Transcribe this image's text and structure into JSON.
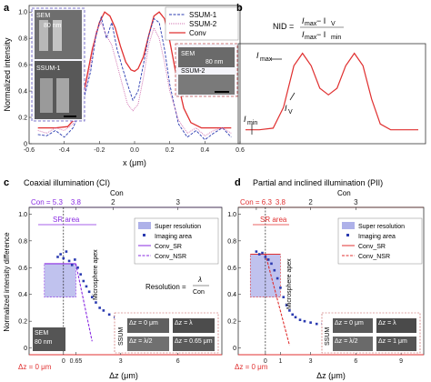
{
  "panel_labels": {
    "a": "a",
    "b": "b",
    "c": "c",
    "d": "d"
  },
  "panel_a": {
    "xlabel": "x (μm)",
    "ylabel": "Normalized intensity",
    "xticks": [
      "-0.6",
      "-0.4",
      "-0.2",
      "0.0",
      "0.2",
      "0.4",
      "0.6"
    ],
    "yticks": [
      "0",
      "0.2",
      "0.4",
      "0.6",
      "0.8",
      "1.0"
    ],
    "legend": [
      "SSUM-1",
      "SSUM-2",
      "Conv"
    ],
    "inset_labels": {
      "sem": "SEM",
      "sem_scale": "80 nm",
      "ssum1": "SSUM-1",
      "sem2": "SEM",
      "sem2_scale": "80 nm",
      "ssum2": "SSUM-2"
    }
  },
  "panel_b": {
    "formula_lhs": "NID =",
    "formula_num": "I",
    "formula_num_sub1": "max",
    "formula_num_mid": " − I",
    "formula_num_sub2": "V",
    "formula_den": "I",
    "formula_den_sub1": "max",
    "formula_den_mid": " − I",
    "formula_den_sub2": "min",
    "label_max": "I",
    "label_max_sub": "max",
    "label_min": "I",
    "label_min_sub": "min",
    "label_v": "I",
    "label_v_sub": "V"
  },
  "panel_c": {
    "title": "Coaxial illumination (CI)",
    "top_axis_label": "Con",
    "top_prefix": "Con = 5.3",
    "top_ticks": [
      "5.3",
      "3.8",
      "2",
      "3"
    ],
    "ylabel": "Normalized intensity difference",
    "xlabel": "Δz (μm)",
    "bottom_prefix": "Δz = 0 μm",
    "xticks": [
      "0",
      "0.65",
      "3",
      "6"
    ],
    "yticks": [
      "0",
      "0.2",
      "0.4",
      "0.6",
      "0.8",
      "1.0"
    ],
    "sr_area": "SR area",
    "legend": [
      "Super resolution",
      "Imaging area",
      "Conv_SR",
      "Conv_NSR"
    ],
    "resolution_label": "Resolution =",
    "resolution_num": "λ",
    "resolution_den": "Con",
    "apex_label": "Microsphere apex",
    "sem_label": "SEM",
    "sem_scale": "80 nm",
    "ssum_label": "SSUM",
    "strip_labels": [
      "Δz = 0 μm",
      "Δz = λ",
      "Δz = λ/2",
      "Δz = 0.65 μm"
    ]
  },
  "panel_d": {
    "title": "Partial and inclined illumination (PII)",
    "top_axis_label": "Con",
    "top_prefix": "Con = 6.3",
    "top_ticks": [
      "6.3",
      "3.8",
      "2",
      "3"
    ],
    "xlabel": "Δz (μm)",
    "bottom_prefix": "Δz = 0 μm",
    "xticks": [
      "0",
      "1",
      "3",
      "6",
      "9"
    ],
    "yticks": [
      "0",
      "0.2",
      "0.4",
      "0.6",
      "0.8",
      "1.0"
    ],
    "sr_area": "SR area",
    "legend": [
      "Super resolution",
      "Imaging area",
      "Conv_SR",
      "Conv_NSR"
    ],
    "apex_label": "Microsphere apex",
    "ssum_label": "SSUM",
    "strip_labels": [
      "Δz = 0 μm",
      "Δz = λ",
      "Δz = λ/2",
      "Δz = 1 μm"
    ]
  },
  "colors": {
    "blue": "#2a3ab0",
    "red": "#e03030",
    "purple": "#8a2be2",
    "pink": "#d070b0",
    "shade": "#8c90e0"
  },
  "chart_data": [
    {
      "type": "line",
      "panel": "a",
      "xlabel": "x (μm)",
      "ylabel": "Normalized intensity",
      "xlim": [
        -0.6,
        0.6
      ],
      "ylim": [
        0,
        1.05
      ],
      "series": [
        {
          "name": "Conv",
          "x": [
            -0.55,
            -0.45,
            -0.38,
            -0.32,
            -0.28,
            -0.24,
            -0.2,
            -0.17,
            -0.14,
            -0.11,
            -0.08,
            -0.05,
            -0.02,
            0.0,
            0.02,
            0.05,
            0.08,
            0.11,
            0.14,
            0.17,
            0.2,
            0.24,
            0.28,
            0.32,
            0.38,
            0.45,
            0.55
          ],
          "y": [
            0.12,
            0.12,
            0.13,
            0.22,
            0.45,
            0.72,
            0.92,
            1.0,
            0.97,
            0.88,
            0.74,
            0.62,
            0.56,
            0.55,
            0.57,
            0.66,
            0.82,
            0.97,
            1.0,
            0.95,
            0.78,
            0.5,
            0.27,
            0.16,
            0.12,
            0.12,
            0.12
          ]
        },
        {
          "name": "SSUM-1",
          "x": [
            -0.55,
            -0.5,
            -0.45,
            -0.4,
            -0.35,
            -0.3,
            -0.25,
            -0.22,
            -0.19,
            -0.16,
            -0.13,
            -0.1,
            -0.07,
            -0.04,
            -0.01,
            0.02,
            0.05,
            0.08,
            0.11,
            0.14,
            0.17,
            0.2,
            0.25,
            0.3,
            0.35,
            0.4,
            0.45,
            0.5,
            0.55
          ],
          "y": [
            0.07,
            0.06,
            0.1,
            0.05,
            0.12,
            0.28,
            0.55,
            0.82,
            0.96,
            0.8,
            0.92,
            0.72,
            0.58,
            0.45,
            0.33,
            0.4,
            0.6,
            0.82,
            0.95,
            0.92,
            0.72,
            0.45,
            0.15,
            0.05,
            0.1,
            0.03,
            0.08,
            0.12,
            0.05
          ]
        },
        {
          "name": "SSUM-2",
          "x": [
            -0.55,
            -0.5,
            -0.45,
            -0.4,
            -0.35,
            -0.3,
            -0.25,
            -0.22,
            -0.19,
            -0.16,
            -0.13,
            -0.1,
            -0.07,
            -0.04,
            -0.01,
            0.02,
            0.05,
            0.08,
            0.11,
            0.14,
            0.17,
            0.2,
            0.25,
            0.3,
            0.35,
            0.4,
            0.45,
            0.5,
            0.55
          ],
          "y": [
            0.1,
            0.08,
            0.12,
            0.1,
            0.15,
            0.3,
            0.6,
            0.85,
            0.92,
            0.82,
            0.75,
            0.6,
            0.45,
            0.3,
            0.25,
            0.3,
            0.5,
            0.75,
            0.88,
            0.8,
            0.62,
            0.4,
            0.18,
            0.08,
            0.12,
            0.06,
            0.1,
            0.12,
            0.08
          ]
        }
      ]
    },
    {
      "type": "line",
      "panel": "b",
      "series": [
        {
          "x": [
            0,
            0.08,
            0.16,
            0.22,
            0.28,
            0.33,
            0.38,
            0.43,
            0.48,
            0.53,
            0.58,
            0.63,
            0.68,
            0.73,
            0.78,
            0.84,
            0.92,
            1.0
          ],
          "y": [
            0.08,
            0.08,
            0.1,
            0.35,
            0.85,
            1.0,
            0.85,
            0.58,
            0.5,
            0.58,
            0.85,
            1.0,
            0.85,
            0.45,
            0.15,
            0.08,
            0.08,
            0.08
          ]
        }
      ]
    },
    {
      "type": "scatter",
      "panel": "c",
      "xlabel": "Δz (μm)",
      "ylabel": "Normalized intensity difference",
      "xlim": [
        -1.8,
        8.3
      ],
      "ylim": [
        -0.05,
        1.05
      ],
      "sr_region_x": [
        -1.0,
        0.65
      ],
      "sr_region_y": [
        0.38,
        0.63
      ],
      "series": [
        {
          "name": "Imaging area",
          "x": [
            -0.3,
            -0.15,
            0.0,
            0.15,
            0.3,
            0.45,
            0.6,
            0.75,
            0.9,
            1.05,
            1.2,
            1.35,
            1.5,
            1.7,
            1.9,
            2.1,
            2.4,
            2.7,
            3.0,
            3.3,
            3.6,
            3.9,
            4.2,
            4.5,
            4.8,
            5.1,
            5.4,
            5.7,
            6.0,
            6.3,
            6.6,
            6.9,
            7.2,
            7.5
          ],
          "y": [
            0.68,
            0.7,
            0.67,
            0.72,
            0.65,
            0.62,
            0.66,
            0.6,
            0.55,
            0.5,
            0.46,
            0.42,
            0.38,
            0.34,
            0.3,
            0.28,
            0.25,
            0.23,
            0.21,
            0.2,
            0.19,
            0.18,
            0.17,
            0.16,
            0.15,
            0.14,
            0.14,
            0.13,
            0.13,
            0.12,
            0.12,
            0.11,
            0.11,
            0.1
          ]
        },
        {
          "name": "Conv_SR",
          "x": [
            -1.0,
            0.65
          ],
          "y": [
            0.63,
            0.63
          ]
        },
        {
          "name": "Conv_NSR",
          "x": [
            0.65,
            1.5
          ],
          "y": [
            0.63,
            0.05
          ]
        }
      ]
    },
    {
      "type": "scatter",
      "panel": "d",
      "xlabel": "Δz (μm)",
      "xlim": [
        -1.8,
        10.5
      ],
      "ylim": [
        -0.05,
        1.05
      ],
      "sr_region_x": [
        -1.0,
        1.0
      ],
      "sr_region_y": [
        0.38,
        0.7
      ],
      "series": [
        {
          "name": "Imaging area",
          "x": [
            -0.6,
            -0.4,
            -0.2,
            0.0,
            0.2,
            0.4,
            0.6,
            0.8,
            1.0,
            1.2,
            1.4,
            1.6,
            1.8,
            2.0,
            2.3,
            2.6,
            3.0,
            3.4,
            3.8,
            4.2,
            4.6,
            5.0,
            5.5,
            6.0,
            6.5,
            7.0,
            7.5,
            8.0,
            8.5,
            9.0
          ],
          "y": [
            0.72,
            0.7,
            0.71,
            0.68,
            0.66,
            0.63,
            0.58,
            0.52,
            0.45,
            0.38,
            0.32,
            0.28,
            0.25,
            0.23,
            0.21,
            0.2,
            0.19,
            0.18,
            0.18,
            0.17,
            0.16,
            0.16,
            0.15,
            0.15,
            0.14,
            0.14,
            0.13,
            0.13,
            0.13,
            0.12
          ]
        },
        {
          "name": "Conv_SR",
          "x": [
            -1.0,
            1.0
          ],
          "y": [
            0.7,
            0.7
          ]
        },
        {
          "name": "Conv_NSR",
          "x": [
            0.0,
            1.6
          ],
          "y": [
            0.7,
            0.02
          ]
        }
      ]
    }
  ]
}
